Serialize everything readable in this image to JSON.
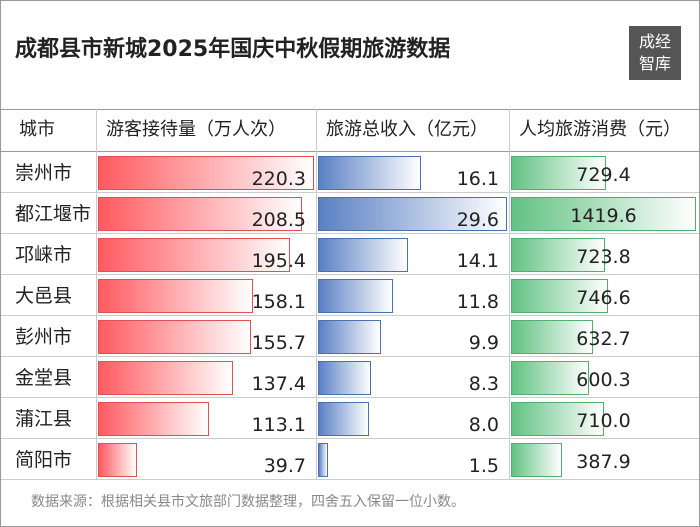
{
  "title": "成都县市新城2025年国庆中秋假期旅游数据",
  "logo": {
    "lines": [
      "成经",
      "智库"
    ]
  },
  "table": {
    "columns": [
      "城市",
      "游客接待量（万人次）",
      "旅游总收入（亿元）",
      "人均旅游消费（元）"
    ],
    "rows": [
      [
        "崇州市",
        "220.3",
        "16.1",
        "729.4"
      ],
      [
        "都江堰市",
        "208.5",
        "29.6",
        "1419.6"
      ],
      [
        "邛崃市",
        "195.4",
        "14.1",
        "723.8"
      ],
      [
        "大邑县",
        "158.1",
        "11.8",
        "746.6"
      ],
      [
        "彭州市",
        "155.7",
        "9.9",
        "632.7"
      ],
      [
        "金堂县",
        "137.4",
        "8.3",
        "600.3"
      ],
      [
        "蒲江县",
        "113.1",
        "8.0",
        "710.0"
      ],
      [
        "简阳市",
        "39.7",
        "1.5",
        "387.9"
      ]
    ]
  },
  "footnote": "数据来源：根据相关县市文旅部门数据整理，四舍五入保留一位小数。"
}
